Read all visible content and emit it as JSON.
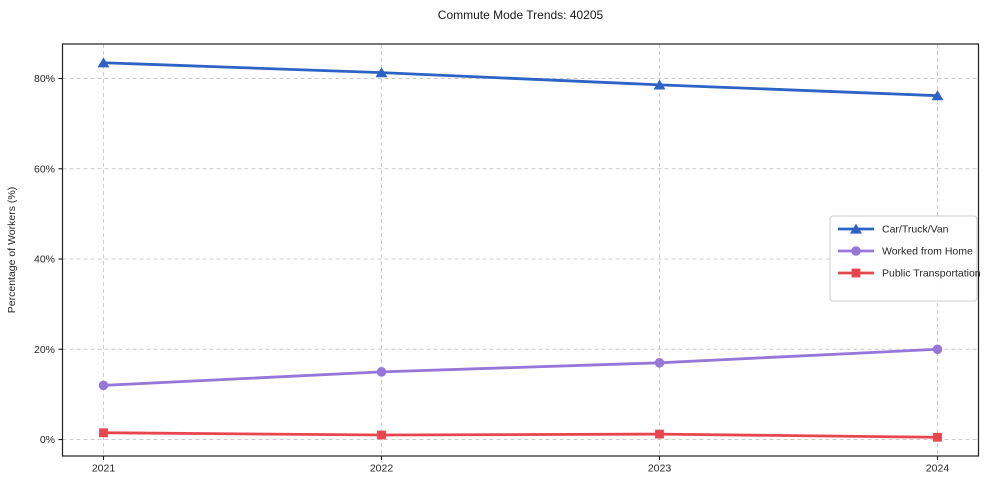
{
  "chart_data": {
    "type": "line",
    "title": "Commute Mode Trends: 40205",
    "xlabel": "",
    "ylabel": "Percentage of Workers (%)",
    "categories": [
      "2021",
      "2022",
      "2023",
      "2024"
    ],
    "series": [
      {
        "name": "Car/Truck/Van",
        "values": [
          83.5,
          81.3,
          78.6,
          76.2
        ],
        "color": "#2c63c4",
        "marker": "triangle"
      },
      {
        "name": "Worked from Home",
        "values": [
          12.0,
          15.0,
          17.0,
          20.0
        ],
        "color": "#9676d8",
        "marker": "circle"
      },
      {
        "name": "Public Transportation",
        "values": [
          1.5,
          1.0,
          1.2,
          0.5
        ],
        "color": "#e8464e",
        "marker": "square"
      }
    ],
    "yticks": [
      0,
      20,
      40,
      60,
      80
    ],
    "ytick_labels": [
      "0%",
      "20%",
      "40%",
      "60%",
      "80%"
    ],
    "ylim": [
      -3.65,
      87.65
    ],
    "grid": true,
    "grid_style": "dashed",
    "legend_position": "center-right"
  },
  "style": {
    "grid_color": "#cccccc",
    "spine_color": "#1f1f1f",
    "tick_text_color": "#262626",
    "legend_border_color": "#cccccc",
    "legend_bg": "#ffffff"
  }
}
